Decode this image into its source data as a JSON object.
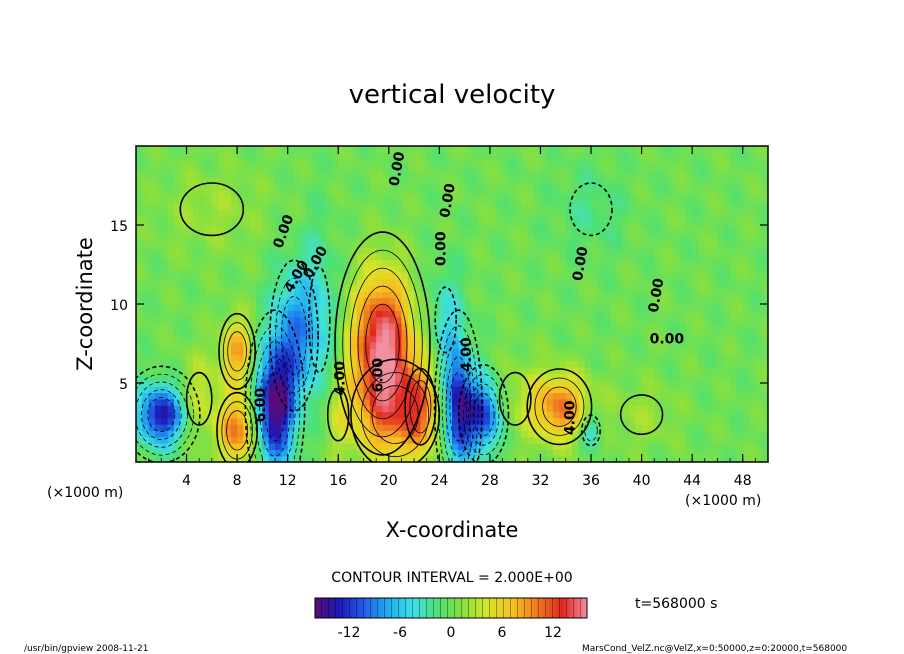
{
  "chart_data": {
    "type": "heatmap",
    "title": "vertical velocity",
    "xlabel": "X-coordinate",
    "ylabel": "Z-coordinate",
    "x_unit": "(×1000 m)",
    "y_unit": "(×1000 m)",
    "xlim": [
      0,
      50
    ],
    "ylim": [
      0,
      20
    ],
    "x_ticks": [
      4,
      8,
      12,
      16,
      20,
      24,
      28,
      32,
      36,
      40,
      44,
      48
    ],
    "y_ticks": [
      5,
      10,
      15
    ],
    "contour_interval": "CONTOUR INTERVAL = 2.000E+00",
    "time_label": "t=568000 s",
    "colorbar": {
      "range": [
        -16,
        16
      ],
      "ticks": [
        -12,
        -6,
        0,
        6,
        12
      ],
      "colors": [
        "#5a0a7a",
        "#1a1ab8",
        "#2060e8",
        "#20b0f0",
        "#40e0e0",
        "#50e070",
        "#8ce03c",
        "#d8e428",
        "#f8c020",
        "#f07820",
        "#e02820",
        "#f090a0"
      ]
    },
    "contour_labels": [
      "0.00",
      "0.00",
      "0.00",
      "0.00",
      "0.00",
      "0.00",
      "0.00",
      "0.00",
      "4.00",
      "4.00",
      "6.00",
      "4.00",
      "4.00",
      "6.00"
    ],
    "features": [
      {
        "x": 19.5,
        "z": 7.5,
        "amp": 16,
        "sx": 1.6,
        "sz": 3.0
      },
      {
        "x": 20.5,
        "z": 3.0,
        "amp": 8,
        "sx": 2.2,
        "sz": 2.2
      },
      {
        "x": 22.5,
        "z": 3.5,
        "amp": 6,
        "sx": 1.0,
        "sz": 2.0
      },
      {
        "x": 11.0,
        "z": 3.5,
        "amp": -16,
        "sx": 1.0,
        "sz": 2.6
      },
      {
        "x": 12.5,
        "z": 8.0,
        "amp": -8,
        "sx": 1.2,
        "sz": 3.0
      },
      {
        "x": 14.5,
        "z": 9.0,
        "amp": -4,
        "sx": 1.0,
        "sz": 4.0
      },
      {
        "x": 8.0,
        "z": 2.0,
        "amp": 10,
        "sx": 1.0,
        "sz": 1.5
      },
      {
        "x": 8.0,
        "z": 7.0,
        "amp": 8,
        "sx": 0.9,
        "sz": 1.5
      },
      {
        "x": 2.0,
        "z": 3.0,
        "amp": -14,
        "sx": 1.3,
        "sz": 1.3
      },
      {
        "x": 5.0,
        "z": 4.0,
        "amp": 4,
        "sx": 1.2,
        "sz": 2.0
      },
      {
        "x": 25.5,
        "z": 3.5,
        "amp": -14,
        "sx": 0.8,
        "sz": 2.6
      },
      {
        "x": 27.5,
        "z": 3.0,
        "amp": -12,
        "sx": 1.0,
        "sz": 1.6
      },
      {
        "x": 24.5,
        "z": 9.0,
        "amp": -4,
        "sx": 1.0,
        "sz": 2.5
      },
      {
        "x": 33.5,
        "z": 3.5,
        "amp": 10,
        "sx": 1.6,
        "sz": 1.5
      },
      {
        "x": 36.0,
        "z": 2.0,
        "amp": -6,
        "sx": 0.6,
        "sz": 0.8
      },
      {
        "x": 30.0,
        "z": 4.0,
        "amp": 2,
        "sx": 1.5,
        "sz": 2.0
      },
      {
        "x": 16.0,
        "z": 3.0,
        "amp": 3,
        "sx": 1.0,
        "sz": 2.0
      },
      {
        "x": 40.0,
        "z": 3.0,
        "amp": 2,
        "sx": 2.0,
        "sz": 1.5
      },
      {
        "x": 6.0,
        "z": 16.0,
        "amp": 2,
        "sx": 3.0,
        "sz": 2.0
      },
      {
        "x": 36.0,
        "z": 16.0,
        "amp": -2,
        "sx": 2.0,
        "sz": 2.0
      }
    ],
    "grid": false,
    "legend": "none"
  },
  "footer": {
    "left": "/usr/bin/gpview  2008-11-21",
    "right": "MarsCond_VelZ.nc@VelZ,x=0:50000,z=0:20000,t=568000"
  }
}
